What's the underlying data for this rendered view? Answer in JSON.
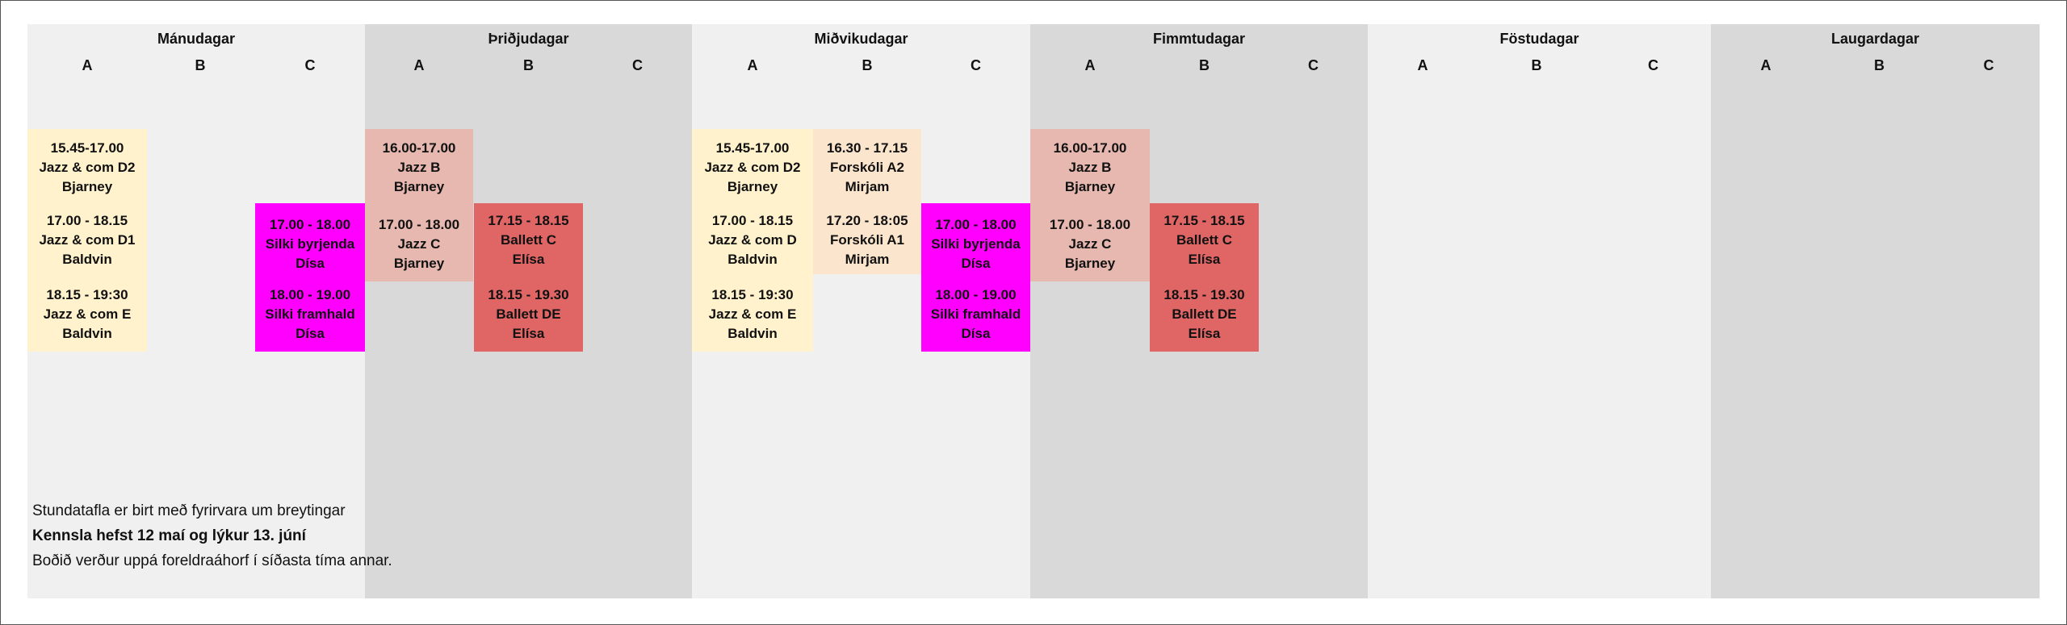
{
  "colors": {
    "sheet": "#f0f0f0",
    "shaded_day": "#d9d9d9",
    "jazz_cream": "#fff2cc",
    "jazz_pink": "#e6b8af",
    "forskoli_peach": "#fce5cd",
    "silki_magenta": "#ff00ff",
    "ballett_red": "#e06666"
  },
  "days": [
    {
      "title": "Mánudagar",
      "shaded": false,
      "columns": [
        "A",
        "B",
        "C"
      ]
    },
    {
      "title": "Þriðjudagar",
      "shaded": true,
      "columns": [
        "A",
        "B",
        "C"
      ]
    },
    {
      "title": "Miðvikudagar",
      "shaded": false,
      "columns": [
        "A",
        "B",
        "C"
      ]
    },
    {
      "title": "Fimmtudagar",
      "shaded": true,
      "columns": [
        "A",
        "B",
        "C"
      ]
    },
    {
      "title": "Föstudagar",
      "shaded": false,
      "columns": [
        "A",
        "B",
        "C"
      ]
    },
    {
      "title": "Laugardagar",
      "shaded": true,
      "columns": [
        "A",
        "B",
        "C"
      ]
    }
  ],
  "classes": [
    {
      "day": 0,
      "col": "A",
      "time": "15.45-17.00",
      "name": "Jazz & com D2",
      "teacher": "Bjarney",
      "color": "jazz_cream"
    },
    {
      "day": 0,
      "col": "A",
      "time": "17.00 - 18.15",
      "name": "Jazz & com D1",
      "teacher": "Baldvin",
      "color": "jazz_cream"
    },
    {
      "day": 0,
      "col": "A",
      "time": "18.15 - 19:30",
      "name": "Jazz & com E",
      "teacher": "Baldvin",
      "color": "jazz_cream"
    },
    {
      "day": 0,
      "col": "C",
      "time": "17.00 - 18.00",
      "name": "Silki byrjenda",
      "teacher": "Dísa",
      "color": "silki_magenta"
    },
    {
      "day": 0,
      "col": "C",
      "time": "18.00 - 19.00",
      "name": "Silki framhald",
      "teacher": "Dísa",
      "color": "silki_magenta"
    },
    {
      "day": 1,
      "col": "A",
      "time": "16.00-17.00",
      "name": "Jazz B",
      "teacher": "Bjarney",
      "color": "jazz_pink"
    },
    {
      "day": 1,
      "col": "A",
      "time": "17.00 - 18.00",
      "name": "Jazz C",
      "teacher": "Bjarney",
      "color": "jazz_pink"
    },
    {
      "day": 1,
      "col": "B",
      "time": "17.15 - 18.15",
      "name": "Ballett C",
      "teacher": "Elísa",
      "color": "ballett_red"
    },
    {
      "day": 1,
      "col": "B",
      "time": "18.15 - 19.30",
      "name": "Ballett DE",
      "teacher": "Elísa",
      "color": "ballett_red"
    },
    {
      "day": 2,
      "col": "A",
      "time": "15.45-17.00",
      "name": "Jazz & com D2",
      "teacher": "Bjarney",
      "color": "jazz_cream"
    },
    {
      "day": 2,
      "col": "A",
      "time": "17.00 - 18.15",
      "name": "Jazz & com D",
      "teacher": "Baldvin",
      "color": "jazz_cream"
    },
    {
      "day": 2,
      "col": "A",
      "time": "18.15 - 19:30",
      "name": "Jazz & com E",
      "teacher": "Baldvin",
      "color": "jazz_cream"
    },
    {
      "day": 2,
      "col": "B",
      "time": "16.30 - 17.15",
      "name": "Forskóli A2",
      "teacher": "Mirjam",
      "color": "forskoli_peach"
    },
    {
      "day": 2,
      "col": "B",
      "time": "17.20 - 18:05",
      "name": "Forskóli A1",
      "teacher": "Mirjam",
      "color": "forskoli_peach"
    },
    {
      "day": 2,
      "col": "C",
      "time": "17.00 - 18.00",
      "name": "Silki byrjenda",
      "teacher": "Dísa",
      "color": "silki_magenta"
    },
    {
      "day": 2,
      "col": "C",
      "time": "18.00 - 19.00",
      "name": "Silki framhald",
      "teacher": "Dísa",
      "color": "silki_magenta"
    },
    {
      "day": 3,
      "col": "A",
      "time": "16.00-17.00",
      "name": "Jazz B",
      "teacher": "Bjarney",
      "color": "jazz_pink"
    },
    {
      "day": 3,
      "col": "A",
      "time": "17.00 - 18.00",
      "name": "Jazz C",
      "teacher": "Bjarney",
      "color": "jazz_pink"
    },
    {
      "day": 3,
      "col": "B",
      "time": "17.15 - 18.15",
      "name": "Ballett C",
      "teacher": "Elísa",
      "color": "ballett_red"
    },
    {
      "day": 3,
      "col": "B",
      "time": "18.15 - 19.30",
      "name": "Ballett DE",
      "teacher": "Elísa",
      "color": "ballett_red"
    }
  ],
  "notes": {
    "line1": "Stundatafla er birt með fyrirvara um breytingar",
    "line2": "Kennsla hefst 12 maí og lýkur 13. júní",
    "line3": "Boðið verður uppá foreldraáhorf í síðasta tíma annar."
  }
}
